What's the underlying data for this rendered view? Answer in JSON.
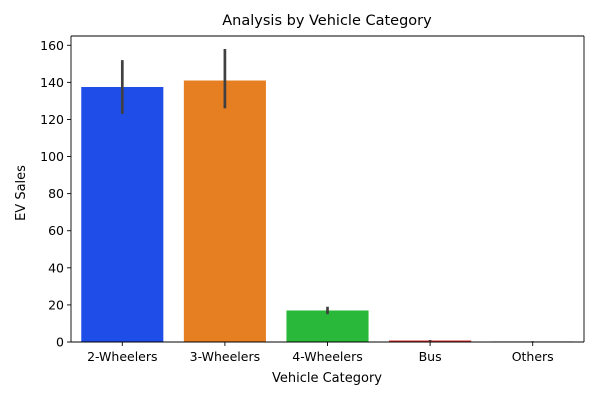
{
  "chart_data": {
    "type": "bar",
    "title": "Analysis by Vehicle Category",
    "xlabel": "Vehicle Category",
    "ylabel": "EV Sales",
    "categories": [
      "2-Wheelers",
      "3-Wheelers",
      "4-Wheelers",
      "Bus",
      "Others"
    ],
    "values": [
      137.5,
      141,
      17,
      0.8,
      0.3
    ],
    "error_low": [
      123,
      126,
      15,
      0.5,
      0.2
    ],
    "error_high": [
      152,
      158,
      19,
      1.1,
      0.4
    ],
    "colors": [
      "#1f4de8",
      "#e67e22",
      "#2ab83a",
      "#d62728",
      "#7b3fa0"
    ],
    "error_color": "#404040",
    "ylim": [
      0,
      165
    ],
    "yticks": [
      0,
      20,
      40,
      60,
      80,
      100,
      120,
      140,
      160
    ],
    "grid": false,
    "legend": "none"
  }
}
